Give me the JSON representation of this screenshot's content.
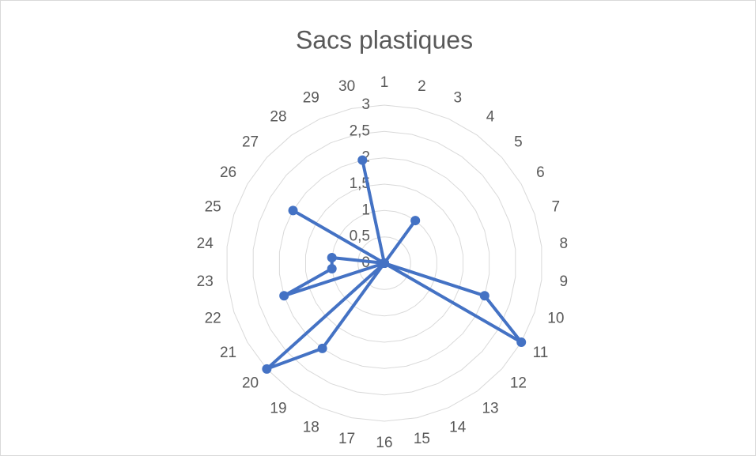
{
  "chart_data": {
    "type": "radar",
    "title": "Sacs plastiques",
    "categories": [
      "1",
      "2",
      "3",
      "4",
      "5",
      "6",
      "7",
      "8",
      "9",
      "10",
      "11",
      "12",
      "13",
      "14",
      "15",
      "16",
      "17",
      "18",
      "19",
      "20",
      "21",
      "22",
      "23",
      "24",
      "25",
      "26",
      "27",
      "28",
      "29",
      "30"
    ],
    "values": [
      0,
      0,
      0,
      1,
      0,
      0,
      0,
      0,
      0,
      2,
      3,
      0,
      0,
      0,
      0,
      0,
      0,
      0,
      2,
      3,
      0,
      2,
      1,
      1,
      0,
      2,
      0,
      0,
      0,
      2
    ],
    "color": "#4472c4",
    "ylim": [
      0,
      3
    ],
    "yticks": [
      0,
      {
        "value": 0.5,
        "label": "0,5"
      },
      1,
      {
        "value": 1.5,
        "label": "1,5"
      },
      2,
      {
        "value": 2.5,
        "label": "2,5"
      },
      3
    ],
    "grid": true
  }
}
